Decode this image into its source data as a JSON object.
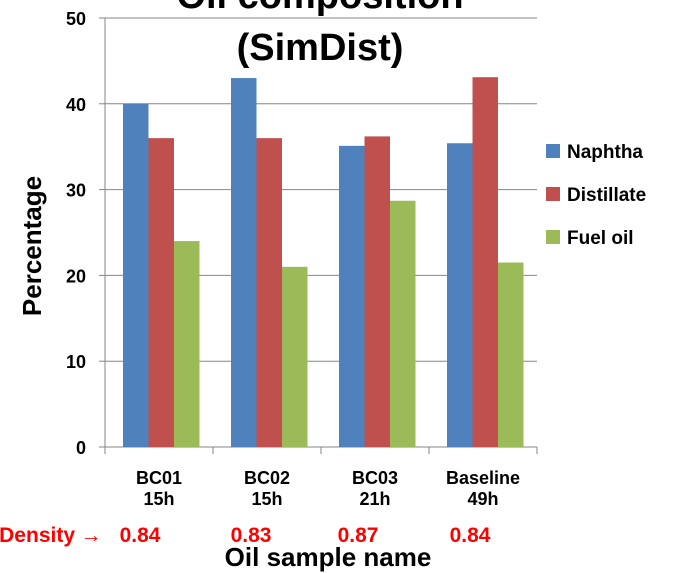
{
  "chart_data": {
    "type": "bar",
    "title": "Oil composition (SimDist)",
    "title_lines": [
      "Oil composition",
      "(SimDist)"
    ],
    "xlabel": "Oil sample name",
    "ylabel": "Percentage",
    "ylim": [
      0,
      50
    ],
    "yticks": [
      0,
      10,
      20,
      30,
      40,
      50
    ],
    "grid": true,
    "legend_position": "right",
    "categories": [
      [
        "BC01",
        "15h"
      ],
      [
        "BC02",
        "15h"
      ],
      [
        "BC03",
        "21h"
      ],
      [
        "Baseline",
        "49h"
      ]
    ],
    "series": [
      {
        "name": "Naphtha",
        "color": "#4f81bd",
        "values": [
          40.0,
          43.0,
          35.1,
          35.4
        ]
      },
      {
        "name": "Distillate",
        "color": "#c0504d",
        "values": [
          36.0,
          36.0,
          36.2,
          43.1
        ]
      },
      {
        "name": "Fuel oil",
        "color": "#9bbb59",
        "values": [
          24.0,
          21.0,
          28.7,
          21.5
        ]
      }
    ],
    "annotation": {
      "label": "Density",
      "arrow": "→",
      "color": "#ff0000",
      "values": [
        "0.84",
        "0.83",
        "0.87",
        "0.84"
      ]
    }
  }
}
